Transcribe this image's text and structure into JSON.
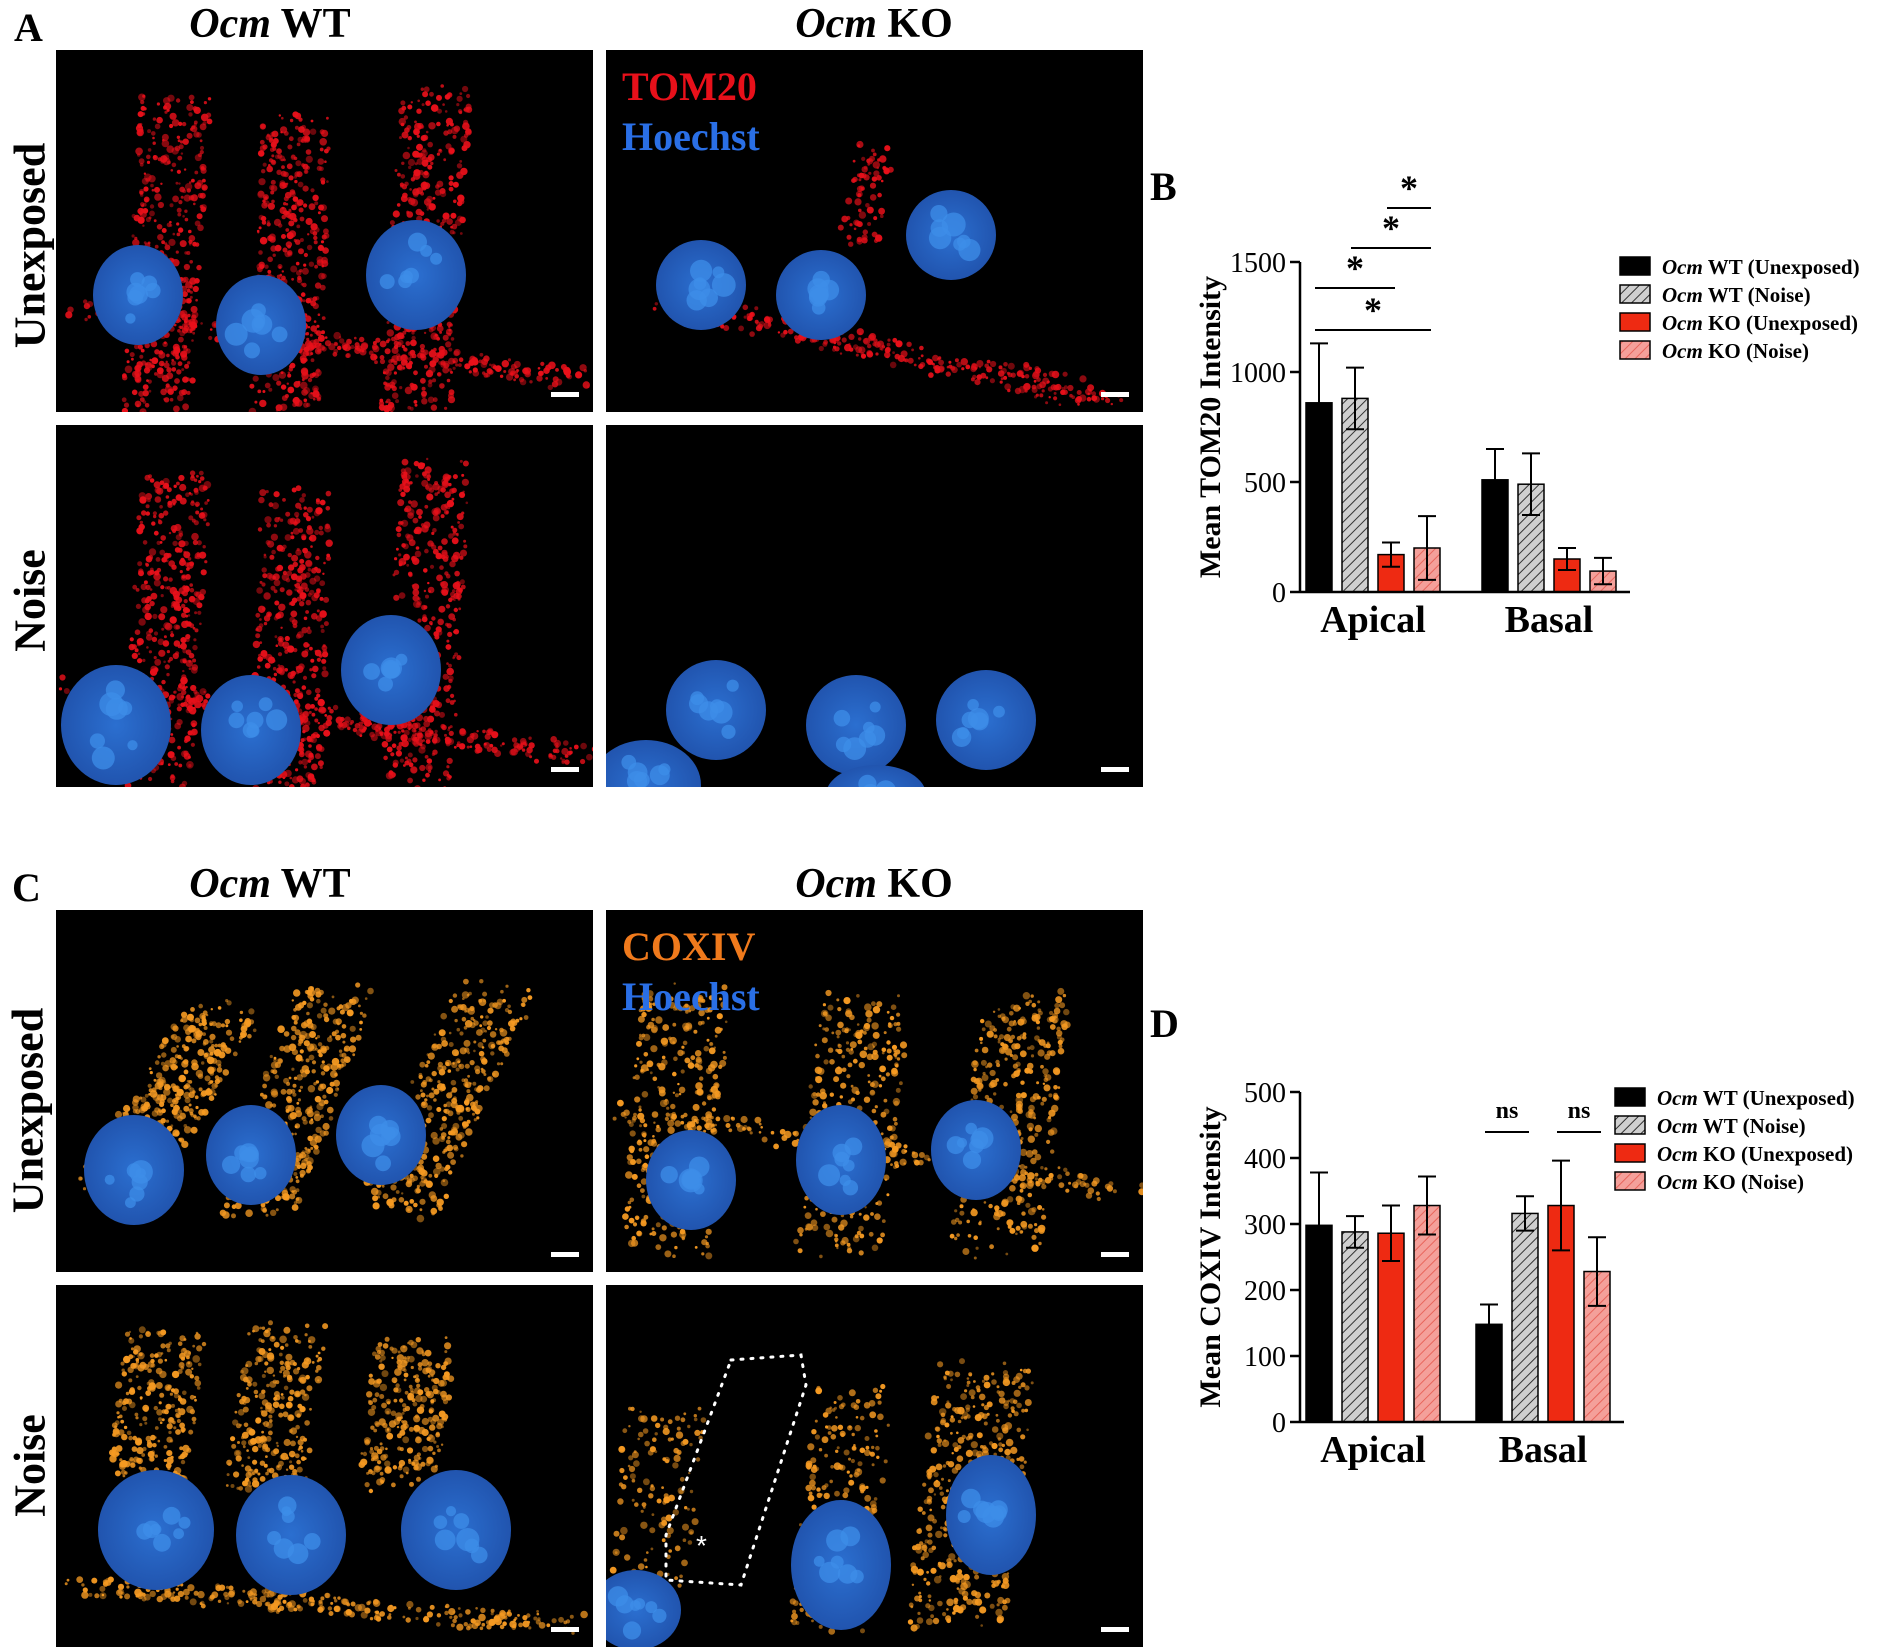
{
  "figure": {
    "panel_A": {
      "letter": "A",
      "col_headers": [
        {
          "italic": "Ocm",
          "rest": " WT"
        },
        {
          "italic": "Ocm",
          "rest": " KO"
        }
      ],
      "row_labels": [
        "Unexposed",
        "Noise"
      ],
      "stain_labels": [
        {
          "text": "TOM20",
          "color": "#e8101a"
        },
        {
          "text": "Hoechst",
          "color": "#2a6fe6"
        }
      ],
      "signal_color": "#e8101a",
      "nuclei_color": "#3d8ee8"
    },
    "panel_C": {
      "letter": "C",
      "col_headers": [
        {
          "italic": "Ocm",
          "rest": " WT"
        },
        {
          "italic": "Ocm",
          "rest": " KO"
        }
      ],
      "row_labels": [
        "Unexposed",
        "Noise"
      ],
      "stain_labels": [
        {
          "text": "COXIV",
          "color": "#f07a1c"
        },
        {
          "text": "Hoechst",
          "color": "#2a6fe6"
        }
      ],
      "signal_color": "#f59a22",
      "nuclei_color": "#3d8ee8",
      "annotation": "*"
    }
  },
  "chart_data": [
    {
      "panel": "B",
      "type": "bar",
      "ylabel": "Mean TOM20 Intensity",
      "categories": [
        "Apical",
        "Basal"
      ],
      "ylim": [
        0,
        1500
      ],
      "yticks": [
        "0",
        "500",
        "1000",
        "1500"
      ],
      "legend_position": "top-right",
      "series": [
        {
          "name_italic": "Ocm",
          "name_rest": " WT (Unexposed)",
          "values": [
            860,
            510
          ],
          "errors": [
            270,
            140
          ],
          "fill": "#000000",
          "pattern": "solid"
        },
        {
          "name_italic": "Ocm",
          "name_rest": " WT (Noise)",
          "values": [
            880,
            490
          ],
          "errors": [
            140,
            140
          ],
          "fill": "#cfcfcf",
          "pattern": "hatch"
        },
        {
          "name_italic": "Ocm",
          "name_rest": " KO (Unexposed)",
          "values": [
            170,
            150
          ],
          "errors": [
            55,
            50
          ],
          "fill": "#ee2a12",
          "pattern": "solid"
        },
        {
          "name_italic": "Ocm",
          "name_rest": " KO (Noise)",
          "values": [
            200,
            95
          ],
          "errors": [
            145,
            60
          ],
          "fill": "#f4a09a",
          "pattern": "hatch"
        }
      ],
      "significance": [
        {
          "label": "*",
          "category": 0,
          "from": 2,
          "to": 3
        },
        {
          "label": "*",
          "category": 0,
          "from": 1,
          "to": 3
        },
        {
          "label": "*",
          "category": 0,
          "from": 0,
          "to": 2
        },
        {
          "label": "*",
          "category": 0,
          "from": 0,
          "to": 3
        }
      ]
    },
    {
      "panel": "D",
      "type": "bar",
      "ylabel": "Mean COXIV Intensity",
      "categories": [
        "Apical",
        "Basal"
      ],
      "ylim": [
        0,
        500
      ],
      "yticks": [
        "0",
        "100",
        "200",
        "300",
        "400",
        "500"
      ],
      "legend_position": "top-right",
      "series": [
        {
          "name_italic": "Ocm",
          "name_rest": " WT (Unexposed)",
          "values": [
            298,
            148
          ],
          "errors": [
            80,
            30
          ],
          "fill": "#000000",
          "pattern": "solid"
        },
        {
          "name_italic": "Ocm",
          "name_rest": " WT (Noise)",
          "values": [
            288,
            316
          ],
          "errors": [
            24,
            26
          ],
          "fill": "#cfcfcf",
          "pattern": "hatch"
        },
        {
          "name_italic": "Ocm",
          "name_rest": " KO (Unexposed)",
          "values": [
            286,
            328
          ],
          "errors": [
            42,
            68
          ],
          "fill": "#ee2a12",
          "pattern": "solid"
        },
        {
          "name_italic": "Ocm",
          "name_rest": " KO (Noise)",
          "values": [
            328,
            228
          ],
          "errors": [
            44,
            52
          ],
          "fill": "#f4a09a",
          "pattern": "hatch"
        }
      ],
      "significance": [
        {
          "label": "ns",
          "category": 1,
          "from": 0,
          "to": 1
        },
        {
          "label": "ns",
          "category": 1,
          "from": 2,
          "to": 3
        }
      ]
    }
  ]
}
